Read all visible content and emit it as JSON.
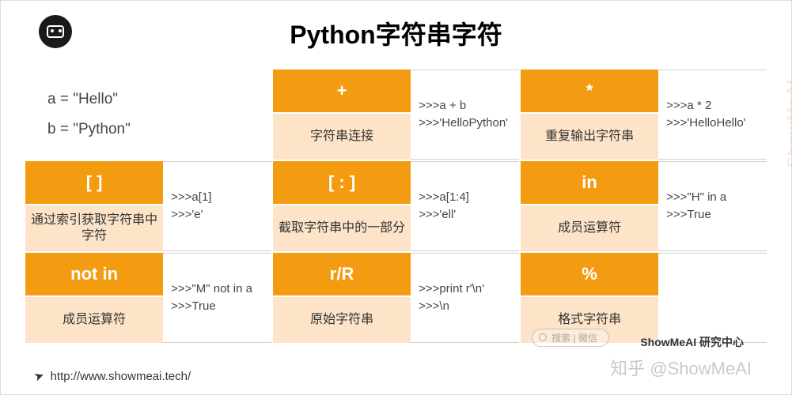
{
  "title": "Python字符串字符",
  "vars": {
    "a": "a = \"Hello\"",
    "b": "b = \"Python\""
  },
  "cells": [
    {
      "sym": "+",
      "desc": "字符串连接",
      "ex1": ">>>a + b",
      "ex2": ">>>'HelloPython'"
    },
    {
      "sym": "*",
      "desc": "重复输出字符串",
      "ex1": ">>>a * 2",
      "ex2": ">>>'HelloHello'"
    },
    {
      "sym": "[ ]",
      "desc": "通过索引获取字符串中字符",
      "ex1": ">>>a[1]",
      "ex2": ">>>'e'"
    },
    {
      "sym": "[ : ]",
      "desc": "截取字符串中的一部分",
      "ex1": ">>>a[1:4]",
      "ex2": ">>>'ell'"
    },
    {
      "sym": "in",
      "desc": "成员运算符",
      "ex1": ">>>\"H\" in a",
      "ex2": ">>>True"
    },
    {
      "sym": "not in",
      "desc": "成员运算符",
      "ex1": ">>>\"M\" not in a",
      "ex2": ">>>True"
    },
    {
      "sym": "r/R",
      "desc": "原始字符串",
      "ex1": ">>>print r'\\n'",
      "ex2": ">>>\\n"
    },
    {
      "sym": "%",
      "desc": "格式字符串",
      "ex1": "",
      "ex2": ""
    }
  ],
  "footer_url": "http://www.showmeai.tech/",
  "credit": "ShowMeAI 研究中心",
  "zhihu": "知乎 @ShowMeAI",
  "watermark": "ShowMeAI",
  "search_placeholder": "搜索 | 微信",
  "colors": {
    "accent": "#f39c12",
    "accent_light": "#fde4c9",
    "text": "#333333",
    "bg": "#ffffff"
  }
}
